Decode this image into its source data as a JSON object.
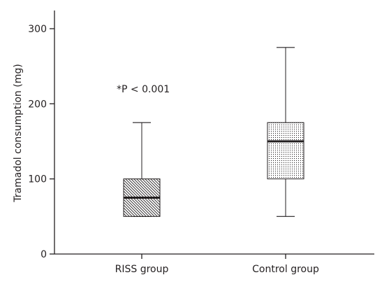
{
  "chart_data": {
    "type": "boxplot",
    "title": "",
    "xlabel": "",
    "ylabel": "Tramadol consumption (mg)",
    "ylim": [
      0,
      300
    ],
    "yticks": [
      0,
      100,
      200,
      300
    ],
    "grid": false,
    "legend": "none",
    "categories": [
      "RISS group",
      "Control group"
    ],
    "series": [
      {
        "category": "RISS group",
        "whisker_low": 50,
        "q1": 50,
        "median": 75,
        "q3": 100,
        "whisker_high": 175,
        "fill_pattern": "diagonal-hatch"
      },
      {
        "category": "Control group",
        "whisker_low": 50,
        "q1": 100,
        "median": 150,
        "q3": 175,
        "whisker_high": 275,
        "fill_pattern": "dots"
      }
    ],
    "annotations": [
      "*P < 0.001"
    ],
    "colors": {
      "ink": "#231f20",
      "background": "#ffffff"
    }
  }
}
